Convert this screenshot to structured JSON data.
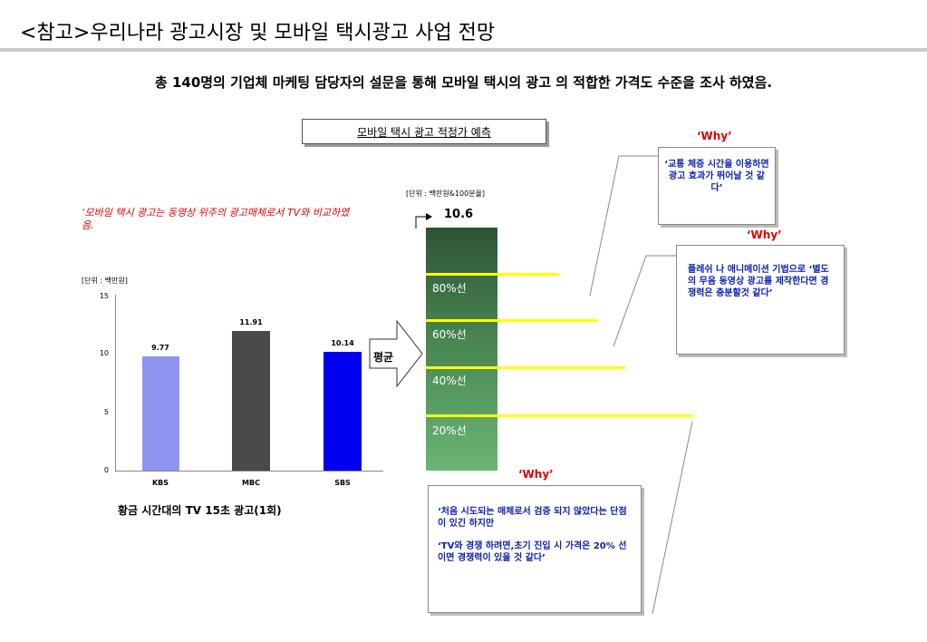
{
  "title": "<참고>우리나라 광고시장 및 모바일 택시광고 사업 전망",
  "subtitle": "총 140명의 기업체 마케팅 담당자의 설문을 통해 모바일 택시의 광고 의 적합한 가격도 수준을 조사 하였음.",
  "box_title": "모바일 택시 광고 적정가 예측",
  "red_note": "‘모바일 택시 광고는 동영상 위주의 광고매체로서 TV와 비교하였음.",
  "tv_caption": "황금 시간대의 TV 15초 광고(1회)",
  "avg_label": "평균",
  "colors": {
    "kbs": "#8e93f0",
    "mbc": "#4a4a4a",
    "sbs": "#0000ee",
    "highlight": "#ffff00",
    "accent_red": "#e00000",
    "callout_text": "#0b1fb4"
  },
  "chart_data": [
    {
      "type": "bar",
      "unit_label": "[단위 : 백만원]",
      "categories": [
        "KBS",
        "MBC",
        "SBS"
      ],
      "values": [
        9.77,
        11.91,
        10.14
      ],
      "value_labels": [
        "9.77",
        "11.91",
        "10.14"
      ],
      "ylim": [
        0,
        15
      ],
      "yticks": [
        "0",
        "5",
        "10",
        "15"
      ],
      "grid": false
    },
    {
      "type": "bar",
      "unit_label": "[단위 : 백만원&100분율]",
      "value": 10.6,
      "value_label": "10.6",
      "percent_marks": [
        "80%선",
        "60%선",
        "40%선",
        "20%선"
      ]
    }
  ],
  "callouts": [
    {
      "why": "‘Why’",
      "text": "‘교통 체증 시간을 이용하면 광고 효과가 뛰어날 것 같다’"
    },
    {
      "why": "‘Why’",
      "text": "플레쉬 나 애니메이션 기법으로 ‘별도의 무음 동영상 광고를 제작한다면 경쟁력은 충분할것 같다’"
    },
    {
      "why": "‘Why’",
      "text1": "‘처음 시도되는 매체로서 검증 되지 않았다는 단점이 있긴 하지만",
      "text2": "‘TV와 경쟁 하려면,초기 진입 시 가격은 20% 선이면 경쟁력이 있을 것 같다’"
    }
  ]
}
